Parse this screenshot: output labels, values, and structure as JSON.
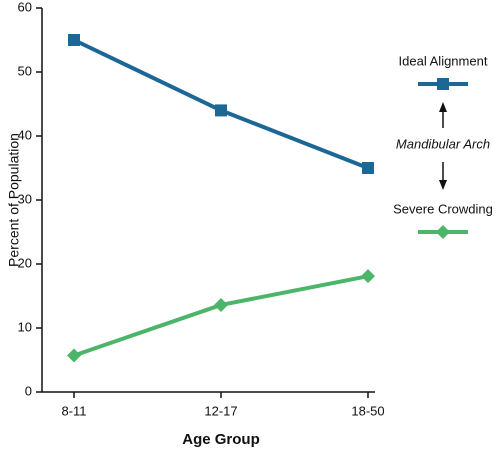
{
  "chart_data": {
    "type": "line",
    "x_label": "Age Group",
    "y_label": "Percent of Population",
    "annotation": "Mandibular Arch",
    "categories": [
      "8-11",
      "12-17",
      "18-50"
    ],
    "series": [
      {
        "name": "Ideal Alignment",
        "color": "#1d6796",
        "marker": "square",
        "values": [
          55,
          44,
          35
        ]
      },
      {
        "name": "Severe Crowding",
        "color": "#4db56a",
        "marker": "diamond",
        "values": [
          5.7,
          13.6,
          18.1
        ]
      }
    ],
    "ylim": [
      0,
      60
    ],
    "yticks": [
      0,
      10,
      20,
      30,
      40,
      50,
      60
    ],
    "legend": "right"
  }
}
